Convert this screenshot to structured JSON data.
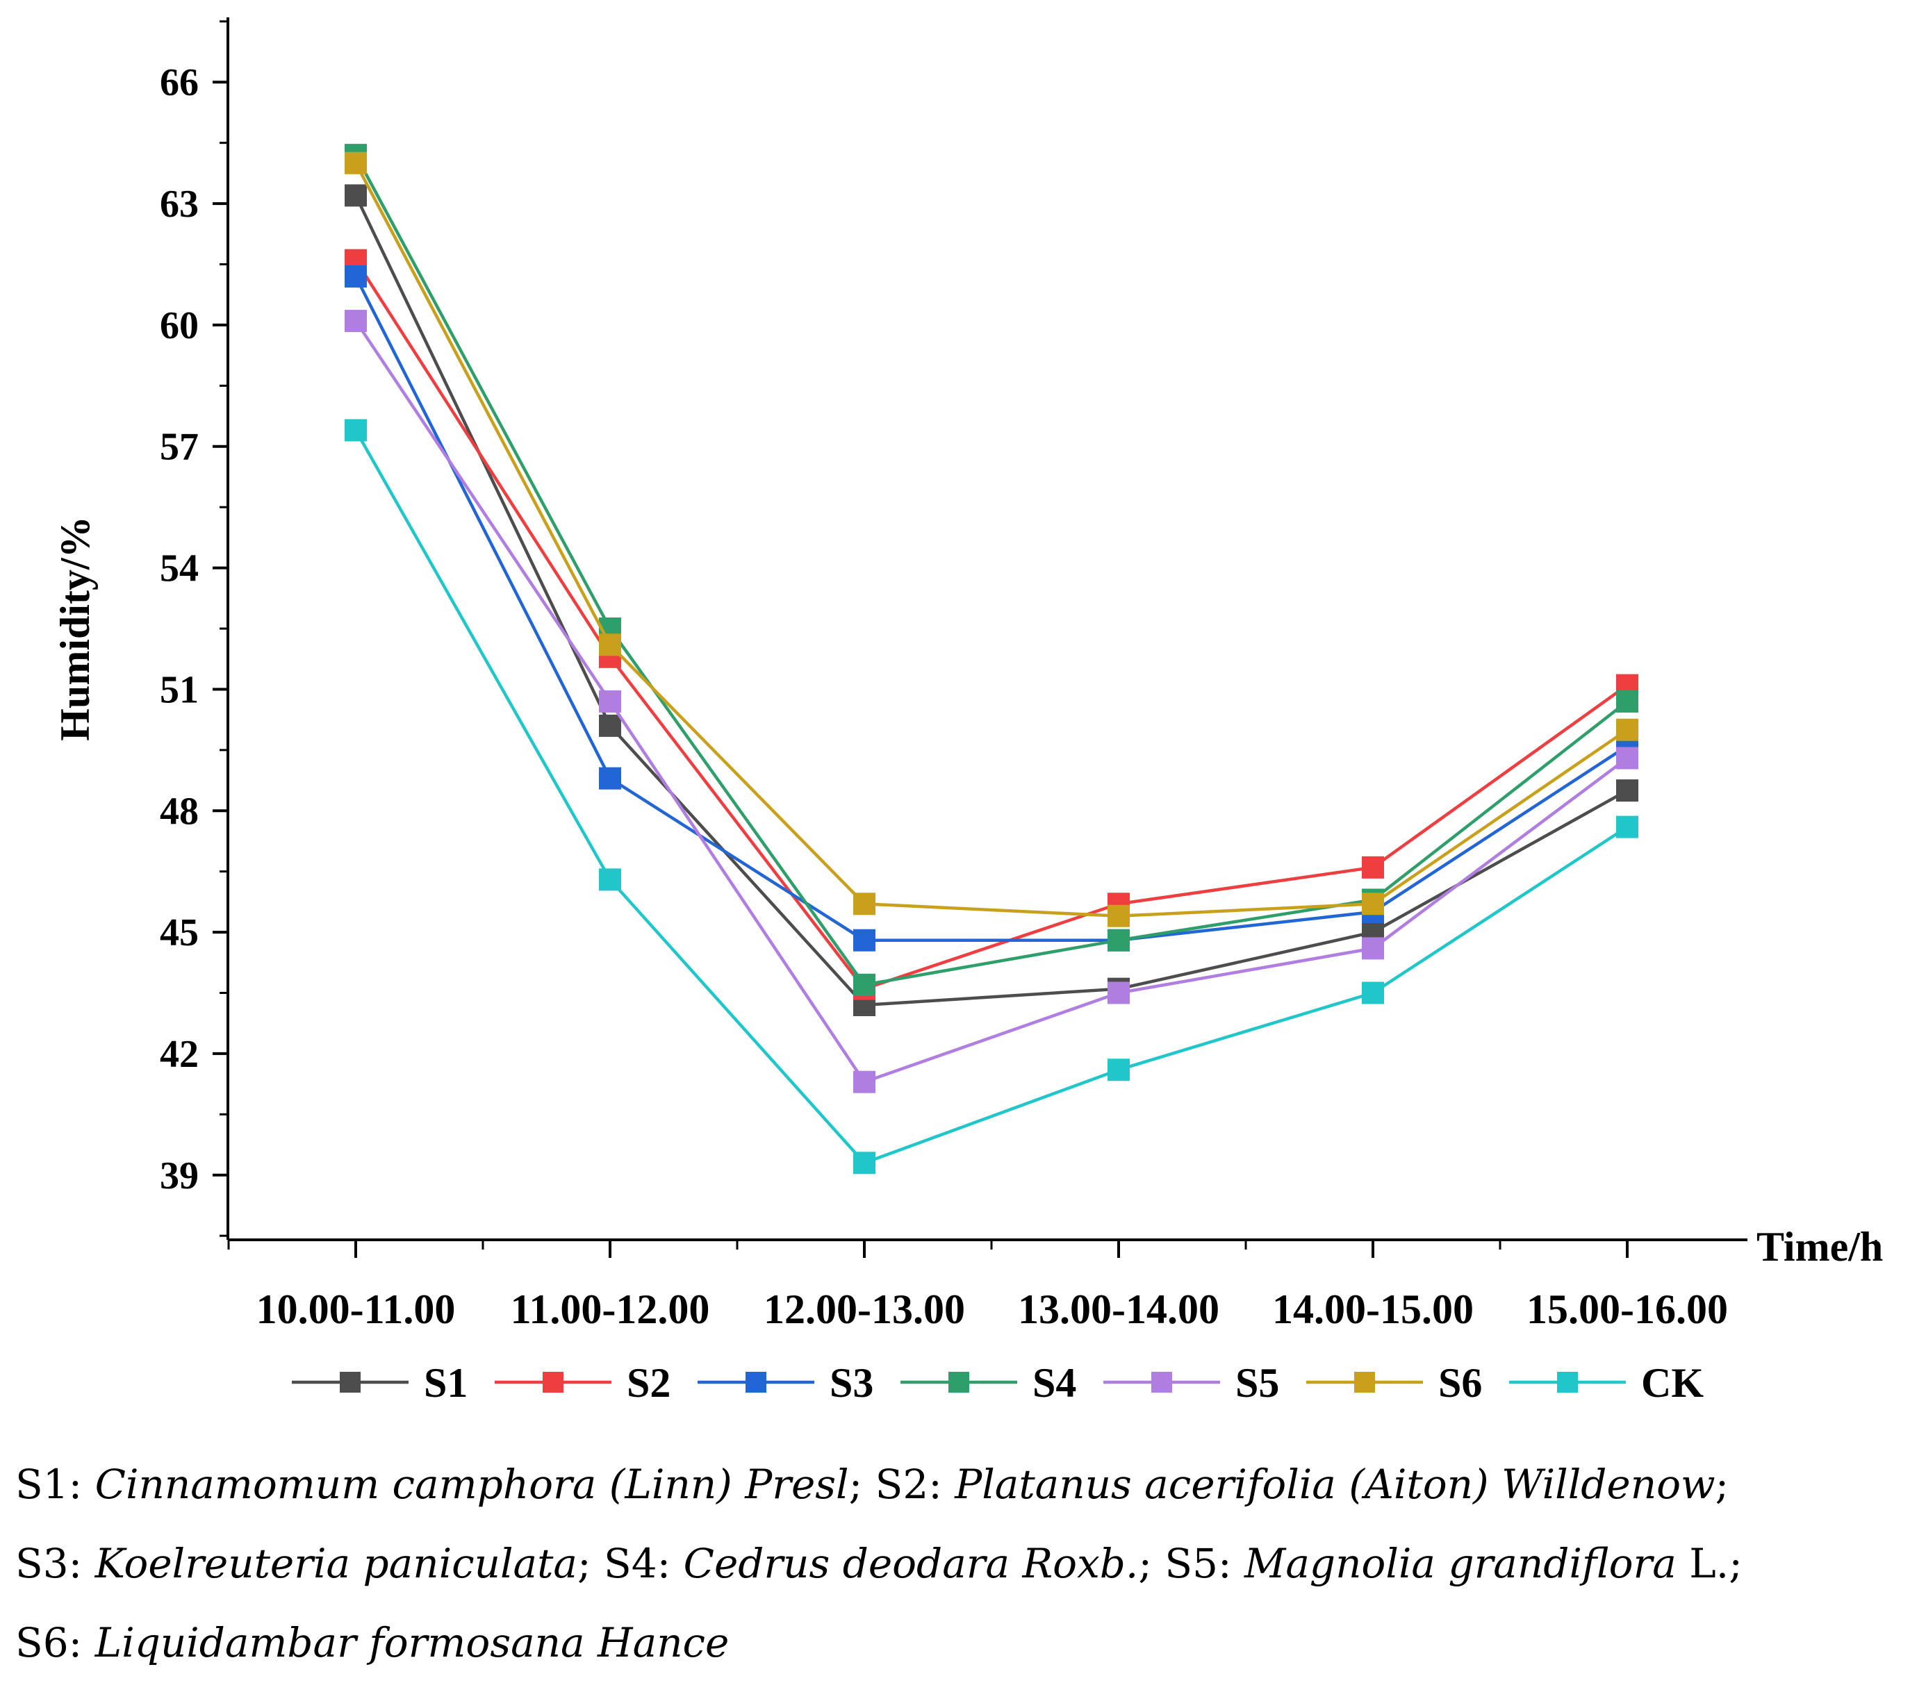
{
  "chart_data": {
    "type": "line",
    "title": "",
    "xlabel": "Time/h",
    "ylabel": "Humidity/%",
    "categories": [
      "10.00-11.00",
      "11.00-12.00",
      "12.00-13.00",
      "13.00-14.00",
      "14.00-15.00",
      "15.00-16.00"
    ],
    "ylim": [
      37.4,
      67.6
    ],
    "yticks": [
      39,
      42,
      45,
      48,
      51,
      54,
      57,
      60,
      63,
      66
    ],
    "grid": false,
    "legend_position": "bottom",
    "series": [
      {
        "name": "S1",
        "color": "#4d4d4d",
        "values": [
          63.2,
          50.1,
          43.2,
          43.6,
          45.0,
          48.5
        ]
      },
      {
        "name": "S2",
        "color": "#ee3e40",
        "values": [
          61.6,
          51.8,
          43.6,
          45.7,
          46.6,
          51.1
        ]
      },
      {
        "name": "S3",
        "color": "#2166d4",
        "values": [
          61.2,
          48.8,
          44.8,
          44.8,
          45.5,
          49.6
        ]
      },
      {
        "name": "S4",
        "color": "#2e9e6a",
        "values": [
          64.2,
          52.5,
          43.7,
          44.8,
          45.8,
          50.7
        ]
      },
      {
        "name": "S5",
        "color": "#b07ee0",
        "values": [
          60.1,
          50.7,
          41.3,
          43.5,
          44.6,
          49.3
        ]
      },
      {
        "name": "S6",
        "color": "#c9a01c",
        "values": [
          64.0,
          52.1,
          45.7,
          45.4,
          45.7,
          50.0
        ]
      },
      {
        "name": "CK",
        "color": "#20c6c9",
        "values": [
          57.4,
          46.3,
          39.3,
          41.6,
          43.5,
          47.6
        ]
      }
    ]
  },
  "caption": {
    "line1": [
      {
        "text": "S1: ",
        "italic": false
      },
      {
        "text": "Cinnamomum camphora (Linn) Presl",
        "italic": true
      },
      {
        "text": "; S2: ",
        "italic": false
      },
      {
        "text": "Platanus acerifolia (Aiton) Willdenow",
        "italic": true
      },
      {
        "text": ";",
        "italic": false
      }
    ],
    "line2": [
      {
        "text": "S3: ",
        "italic": false
      },
      {
        "text": "Koelreuteria paniculata",
        "italic": true
      },
      {
        "text": "; S4: ",
        "italic": false
      },
      {
        "text": "Cedrus deodara Roxb.",
        "italic": true
      },
      {
        "text": "; S5: ",
        "italic": false
      },
      {
        "text": "Magnolia grandiflora",
        "italic": true
      },
      {
        "text": " L.;",
        "italic": false
      }
    ],
    "line3": [
      {
        "text": "S6: ",
        "italic": false
      },
      {
        "text": "Liquidambar formosana Hance",
        "italic": true
      }
    ]
  }
}
